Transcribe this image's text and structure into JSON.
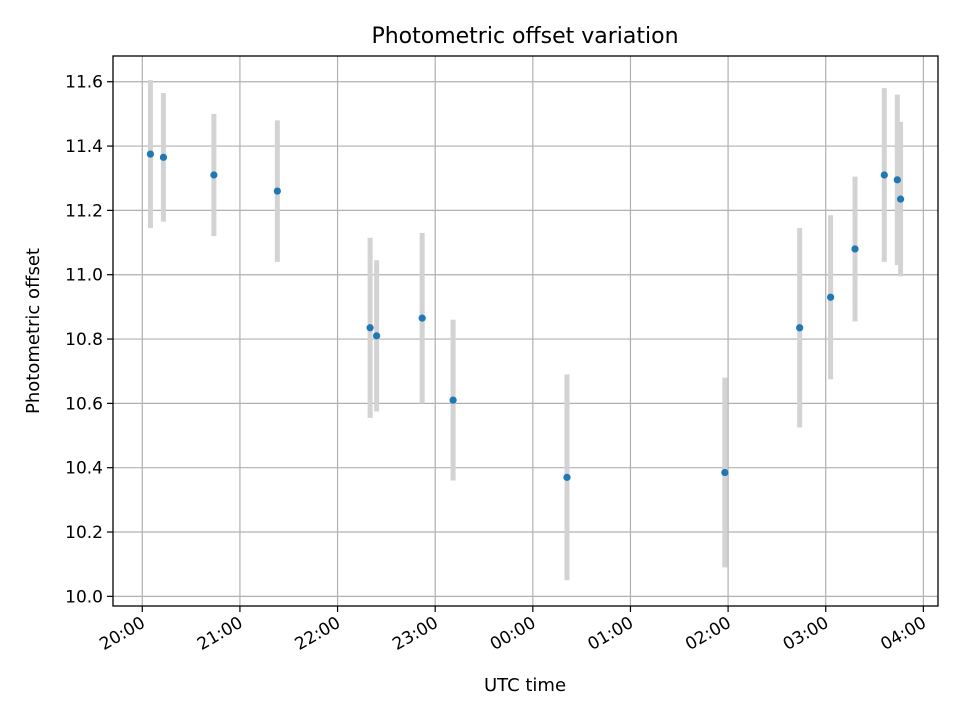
{
  "chart_data": {
    "type": "scatter",
    "title": "Photometric offset variation",
    "xlabel": "UTC time",
    "ylabel": "Photometric offset",
    "x_ticks": [
      "20:00",
      "21:00",
      "22:00",
      "23:00",
      "00:00",
      "01:00",
      "02:00",
      "03:00",
      "04:00"
    ],
    "y_ticks": [
      "10.0",
      "10.2",
      "10.4",
      "10.6",
      "10.8",
      "11.0",
      "11.2",
      "11.4",
      "11.6"
    ],
    "ylim": [
      9.97,
      11.68
    ],
    "xlim": [
      "19:42",
      "04:09"
    ],
    "grid": true,
    "colors": {
      "point": "#1f77b4",
      "errorbar": "#d3d3d3",
      "grid": "#b0b0b0"
    },
    "points": [
      {
        "time": "20:05",
        "value": 11.375,
        "err": 0.23
      },
      {
        "time": "20:13",
        "value": 11.365,
        "err": 0.2
      },
      {
        "time": "20:44",
        "value": 11.31,
        "err": 0.19
      },
      {
        "time": "21:23",
        "value": 11.26,
        "err": 0.22
      },
      {
        "time": "22:20",
        "value": 10.835,
        "err": 0.28
      },
      {
        "time": "22:24",
        "value": 10.81,
        "err": 0.235
      },
      {
        "time": "22:52",
        "value": 10.865,
        "err": 0.265
      },
      {
        "time": "23:11",
        "value": 10.61,
        "err": 0.25
      },
      {
        "time": "00:21",
        "value": 10.37,
        "err": 0.32
      },
      {
        "time": "01:58",
        "value": 10.385,
        "err": 0.295
      },
      {
        "time": "02:44",
        "value": 10.835,
        "err": 0.31
      },
      {
        "time": "03:03",
        "value": 10.93,
        "err": 0.255
      },
      {
        "time": "03:18",
        "value": 11.08,
        "err": 0.225
      },
      {
        "time": "03:36",
        "value": 11.31,
        "err": 0.27
      },
      {
        "time": "03:44",
        "value": 11.295,
        "err": 0.265
      },
      {
        "time": "03:46",
        "value": 11.235,
        "err": 0.24
      }
    ]
  }
}
